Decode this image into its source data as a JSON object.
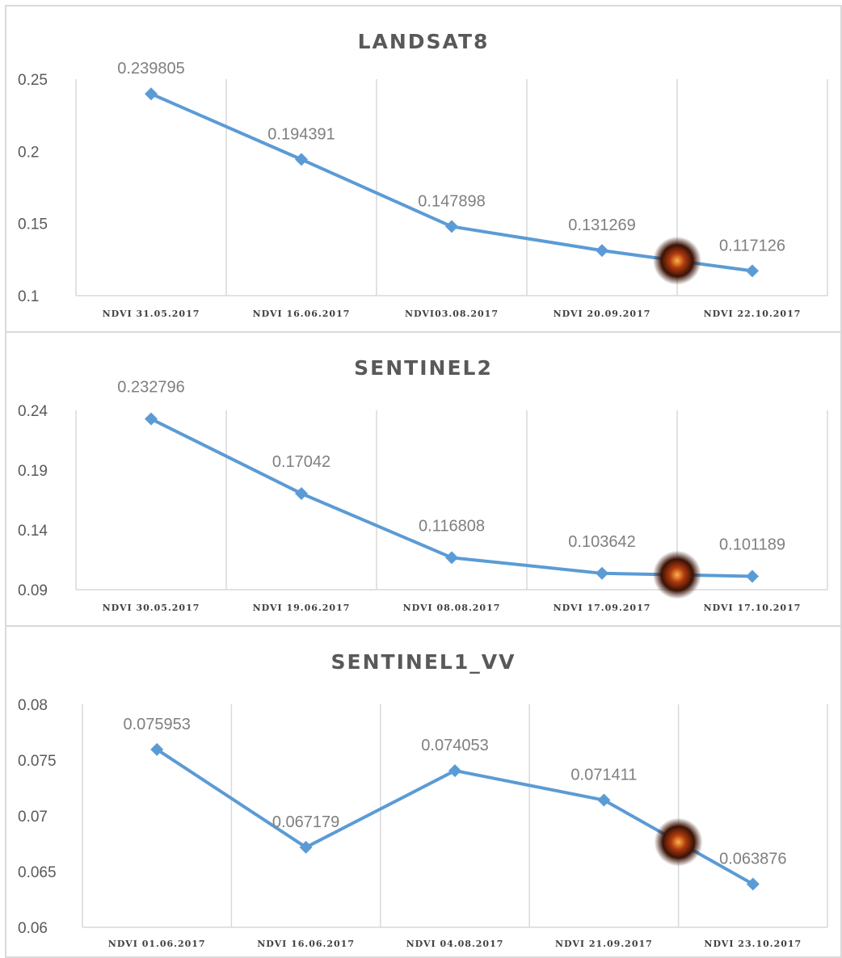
{
  "colors": {
    "series_line": "#5b9bd5",
    "gridline": "#d9d9d9",
    "title_text": "#595959",
    "data_label_text": "#7f7f7f",
    "fire_marker": "#8a2a0a"
  },
  "chart_data": [
    {
      "type": "line",
      "title": "LANDSAT8",
      "categories": [
        "NDVI 31.05.2017",
        "NDVI 16.06.2017",
        "NDVI03.08.2017",
        "NDVI 20.09.2017",
        "NDVI 22.10.2017"
      ],
      "values": [
        0.239805,
        0.194391,
        0.147898,
        0.131269,
        0.117126
      ],
      "data_labels": [
        "0.239805",
        "0.194391",
        "0.147898",
        "0.131269",
        "0.117126"
      ],
      "yticks": [
        "0.25",
        "0.2",
        "0.15",
        "0.1"
      ],
      "ylim": [
        0.1,
        0.25
      ],
      "grid": "vertical",
      "legend": "none",
      "marker": "diamond",
      "fire_marker_position": 3.5
    },
    {
      "type": "line",
      "title": "SENTINEL2",
      "categories": [
        "NDVI 30.05.2017",
        "NDVI 19.06.2017",
        "NDVI 08.08.2017",
        "NDVI 17.09.2017",
        "NDVI 17.10.2017"
      ],
      "values": [
        0.232796,
        0.17042,
        0.116808,
        0.103642,
        0.101189
      ],
      "data_labels": [
        "0.232796",
        "0.17042",
        "0.116808",
        "0.103642",
        "0.101189"
      ],
      "yticks": [
        "0.24",
        "0.19",
        "0.14",
        "0.09"
      ],
      "ylim": [
        0.09,
        0.24
      ],
      "grid": "vertical",
      "legend": "none",
      "marker": "diamond",
      "fire_marker_position": 3.5
    },
    {
      "type": "line",
      "title": "SENTINEL1_VV",
      "categories": [
        "NDVI 01.06.2017",
        "NDVI 16.06.2017",
        "NDVI 04.08.2017",
        "NDVI 21.09.2017",
        "NDVI 23.10.2017"
      ],
      "values": [
        0.075953,
        0.067179,
        0.074053,
        0.071411,
        0.063876
      ],
      "data_labels": [
        "0.075953",
        "0.067179",
        "0.074053",
        "0.071411",
        "0.063876"
      ],
      "yticks": [
        "0.08",
        "0.075",
        "0.07",
        "0.065",
        "0.06"
      ],
      "ylim": [
        0.06,
        0.08
      ],
      "grid": "vertical",
      "legend": "none",
      "marker": "diamond",
      "fire_marker_position": 3.5
    }
  ]
}
